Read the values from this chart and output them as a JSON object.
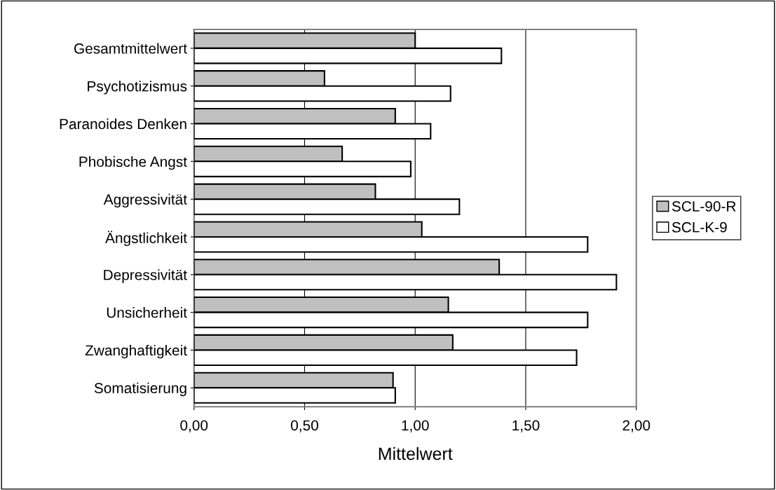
{
  "chart_data": {
    "type": "bar",
    "orientation": "horizontal",
    "xlabel": "Mittelwert",
    "categories": [
      "Gesamtmittelwert",
      "Psychotizismus",
      "Paranoides Denken",
      "Phobische Angst",
      "Aggressivität",
      "Ängstlichkeit",
      "Depressivität",
      "Unsicherheit",
      "Zwanghaftigkeit",
      "Somatisierung"
    ],
    "series": [
      {
        "name": "SCL-90-R",
        "color": "#c0c0c0",
        "values": [
          1.0,
          0.59,
          0.91,
          0.67,
          0.82,
          1.03,
          1.38,
          1.15,
          1.17,
          0.9
        ]
      },
      {
        "name": "SCL-K-9",
        "color": "#ffffff",
        "values": [
          1.39,
          1.16,
          1.07,
          0.98,
          1.2,
          1.78,
          1.91,
          1.78,
          1.73,
          0.91
        ]
      }
    ],
    "xlim": [
      0,
      2
    ],
    "xticks": [
      {
        "value": 0,
        "label": "0,00"
      },
      {
        "value": 0.5,
        "label": "0,50"
      },
      {
        "value": 1,
        "label": "1,00"
      },
      {
        "value": 1.5,
        "label": "1,50"
      },
      {
        "value": 2,
        "label": "2,00"
      }
    ],
    "grid": "x",
    "legend": "right"
  }
}
